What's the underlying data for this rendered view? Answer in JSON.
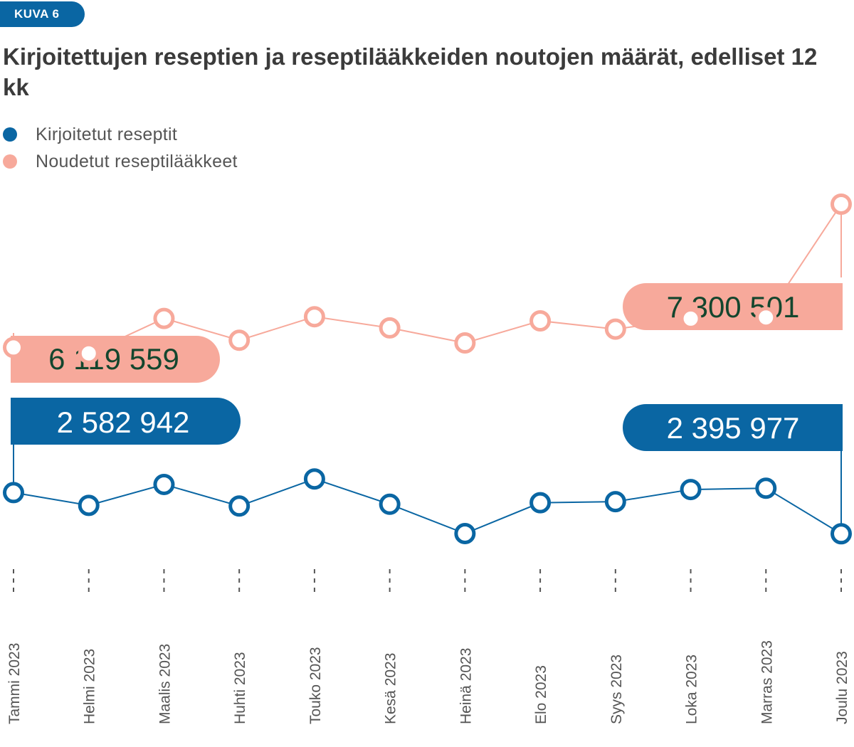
{
  "figure": {
    "badge": "KUVA 6",
    "title": "Kirjoitettujen reseptien ja reseptilääkkeiden noutojen määrät, edelliset 12 kk"
  },
  "colors": {
    "blue": "#0a66a3",
    "salmon": "#f7a99b",
    "salmon_label_text": "#14462e",
    "axis_text": "#555555",
    "title": "#3b3b3b"
  },
  "chart_data": {
    "type": "line",
    "title": "Kirjoitettujen reseptien ja reseptilääkkeiden noutojen määrät, edelliset 12 kk",
    "xlabel": "",
    "ylabel": "",
    "categories": [
      "Tammi 2023",
      "Helmi 2023",
      "Maalis 2023",
      "Huhti 2023",
      "Touko 2023",
      "Kesä 2023",
      "Heinä 2023",
      "Elo 2023",
      "Syys 2023",
      "Loka 2023",
      "Marras 2023",
      "Joulu 2023"
    ],
    "series": [
      {
        "name": "Kirjoitetut reseptit",
        "color": "#0a66a3",
        "values": [
          2582942,
          2525000,
          2620000,
          2522000,
          2645000,
          2530000,
          2397000,
          2537000,
          2542000,
          2597000,
          2603000,
          2395977
        ],
        "first_label": "2 582 942",
        "last_label": "2 395 977",
        "ylim": [
          2300000,
          2720000
        ]
      },
      {
        "name": "Noudetut reseptilääkkeet",
        "color": "#f7a99b",
        "values": [
          6119559,
          6071000,
          6359000,
          6179000,
          6373000,
          6281000,
          6157000,
          6339000,
          6271000,
          6357000,
          6367000,
          7300501
        ],
        "first_label": "6 119 559",
        "last_label": "7 300 501",
        "ylim": [
          5700000,
          7400000
        ]
      }
    ],
    "legend_position": "top-left",
    "grid": false
  }
}
